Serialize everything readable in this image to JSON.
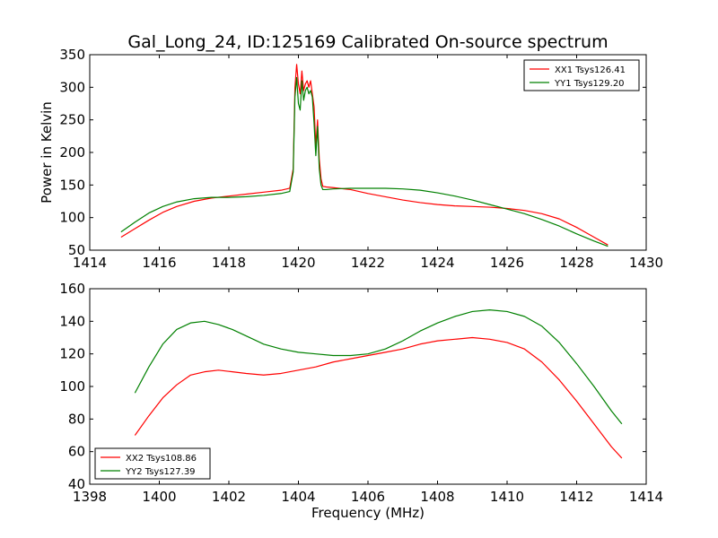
{
  "figure": {
    "title": "Gal_Long_24, ID:125169 Calibrated On-source spectrum",
    "shared_ylabel": "Power in Kelvin",
    "shared_xlabel": "Frequency (MHz)"
  },
  "chart_data": [
    {
      "type": "line",
      "title": "Gal_Long_24, ID:125169 Calibrated On-source spectrum",
      "xlabel": "",
      "ylabel": "Power in Kelvin",
      "xlim": [
        1414,
        1430
      ],
      "ylim": [
        50,
        350
      ],
      "xticks": [
        1414,
        1416,
        1418,
        1420,
        1422,
        1424,
        1426,
        1428,
        1430
      ],
      "yticks": [
        50,
        100,
        150,
        200,
        250,
        300,
        350
      ],
      "grid": false,
      "legend_position": "top-right",
      "series": [
        {
          "name": "XX1 Tsys126.41",
          "color": "#ff0000",
          "x": [
            1414.9,
            1415.3,
            1415.7,
            1416.1,
            1416.5,
            1417.0,
            1417.5,
            1418.0,
            1418.5,
            1419.0,
            1419.5,
            1419.75,
            1419.85,
            1419.9,
            1419.95,
            1420.0,
            1420.05,
            1420.1,
            1420.15,
            1420.2,
            1420.25,
            1420.3,
            1420.35,
            1420.4,
            1420.45,
            1420.5,
            1420.55,
            1420.6,
            1420.65,
            1420.7,
            1420.8,
            1421.0,
            1421.5,
            1422.0,
            1422.5,
            1423.0,
            1423.5,
            1424.0,
            1424.5,
            1425.0,
            1425.5,
            1426.0,
            1426.5,
            1427.0,
            1427.5,
            1428.0,
            1428.5,
            1428.9
          ],
          "y": [
            70,
            83,
            96,
            108,
            117,
            125,
            130,
            133,
            136,
            139,
            142,
            145,
            175,
            300,
            335,
            305,
            290,
            325,
            295,
            305,
            310,
            300,
            310,
            290,
            270,
            210,
            250,
            190,
            160,
            148,
            147,
            146,
            143,
            137,
            132,
            127,
            123,
            120,
            118,
            117,
            116,
            114,
            111,
            106,
            98,
            85,
            70,
            58
          ]
        },
        {
          "name": "YY1 Tsys129.20",
          "color": "#008000",
          "x": [
            1414.9,
            1415.3,
            1415.7,
            1416.1,
            1416.5,
            1417.0,
            1417.5,
            1418.0,
            1418.5,
            1419.0,
            1419.5,
            1419.75,
            1419.85,
            1419.9,
            1419.95,
            1420.0,
            1420.05,
            1420.1,
            1420.15,
            1420.2,
            1420.25,
            1420.3,
            1420.35,
            1420.4,
            1420.45,
            1420.5,
            1420.55,
            1420.6,
            1420.65,
            1420.7,
            1420.8,
            1421.0,
            1421.5,
            1422.0,
            1422.5,
            1423.0,
            1423.5,
            1424.0,
            1424.5,
            1425.0,
            1425.5,
            1426.0,
            1426.5,
            1427.0,
            1427.5,
            1428.0,
            1428.5,
            1428.9
          ],
          "y": [
            78,
            93,
            107,
            117,
            124,
            129,
            131,
            131,
            132,
            134,
            137,
            140,
            170,
            285,
            315,
            275,
            265,
            310,
            280,
            295,
            300,
            290,
            295,
            285,
            245,
            195,
            240,
            175,
            150,
            143,
            143,
            144,
            145,
            145,
            145,
            144,
            142,
            138,
            133,
            127,
            120,
            113,
            106,
            97,
            87,
            75,
            64,
            56
          ]
        }
      ]
    },
    {
      "type": "line",
      "title": "",
      "xlabel": "Frequency (MHz)",
      "ylabel": "",
      "xlim": [
        1398,
        1414
      ],
      "ylim": [
        40,
        160
      ],
      "xticks": [
        1398,
        1400,
        1402,
        1404,
        1406,
        1408,
        1410,
        1412,
        1414
      ],
      "yticks": [
        40,
        60,
        80,
        100,
        120,
        140,
        160
      ],
      "grid": false,
      "legend_position": "bottom-left",
      "series": [
        {
          "name": "XX2 Tsys108.86",
          "color": "#ff0000",
          "x": [
            1399.3,
            1399.7,
            1400.1,
            1400.5,
            1400.9,
            1401.3,
            1401.7,
            1402.1,
            1402.5,
            1403.0,
            1403.5,
            1404.0,
            1404.5,
            1405.0,
            1405.5,
            1406.0,
            1406.5,
            1407.0,
            1407.5,
            1408.0,
            1408.5,
            1409.0,
            1409.5,
            1410.0,
            1410.5,
            1411.0,
            1411.5,
            1412.0,
            1412.5,
            1413.0,
            1413.3
          ],
          "y": [
            70,
            82,
            93,
            101,
            107,
            109,
            110,
            109,
            108,
            107,
            108,
            110,
            112,
            115,
            117,
            119,
            121,
            123,
            126,
            128,
            129,
            130,
            129,
            127,
            123,
            115,
            104,
            91,
            77,
            63,
            56
          ]
        },
        {
          "name": "YY2 Tsys127.39",
          "color": "#008000",
          "x": [
            1399.3,
            1399.7,
            1400.1,
            1400.5,
            1400.9,
            1401.3,
            1401.7,
            1402.1,
            1402.5,
            1403.0,
            1403.5,
            1404.0,
            1404.5,
            1405.0,
            1405.5,
            1406.0,
            1406.5,
            1407.0,
            1407.5,
            1408.0,
            1408.5,
            1409.0,
            1409.5,
            1410.0,
            1410.5,
            1411.0,
            1411.5,
            1412.0,
            1412.5,
            1413.0,
            1413.3
          ],
          "y": [
            96,
            112,
            126,
            135,
            139,
            140,
            138,
            135,
            131,
            126,
            123,
            121,
            120,
            119,
            119,
            120,
            123,
            128,
            134,
            139,
            143,
            146,
            147,
            146,
            143,
            137,
            127,
            114,
            100,
            85,
            77
          ]
        }
      ]
    }
  ]
}
